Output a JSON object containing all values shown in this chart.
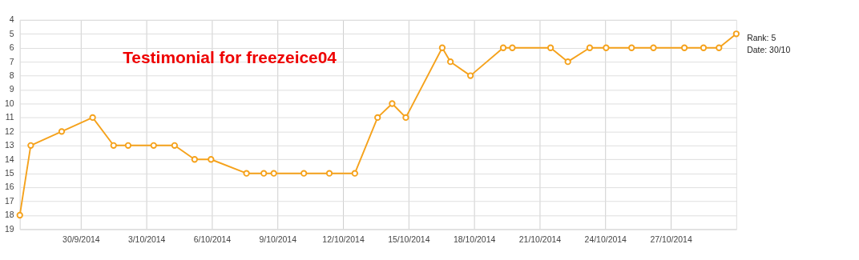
{
  "chart_data": {
    "type": "line",
    "x": [
      "2014-09-27T05:00",
      "2014-09-27T17:00",
      "2014-09-29T03:00",
      "2014-09-30T13:00",
      "2014-10-01T12:00",
      "2014-10-02T04:00",
      "2014-10-03T08:00",
      "2014-10-04T07:00",
      "2014-10-05T05:00",
      "2014-10-05T23:00",
      "2014-10-07T14:00",
      "2014-10-08T09:00",
      "2014-10-08T20:00",
      "2014-10-10T05:00",
      "2014-10-11T09:00",
      "2014-10-12T13:00",
      "2014-10-13T14:00",
      "2014-10-14T06:00",
      "2014-10-14T21:00",
      "2014-10-16T13:00",
      "2014-10-16T22:00",
      "2014-10-17T20:00",
      "2014-10-19T08:00",
      "2014-10-19T18:00",
      "2014-10-21T12:00",
      "2014-10-22T07:00",
      "2014-10-23T07:00",
      "2014-10-24T01:00",
      "2014-10-25T05:00",
      "2014-10-26T05:00",
      "2014-10-27T15:00",
      "2014-10-28T12:00",
      "2014-10-29T05:00",
      "2014-10-30T00:00"
    ],
    "series": [
      {
        "color": "#f5a21c",
        "values": [
          18,
          13,
          12,
          11,
          13,
          13,
          13,
          13,
          14,
          14,
          15,
          15,
          15,
          15,
          15,
          15,
          11,
          10,
          11,
          6,
          7,
          8,
          6,
          6,
          6,
          7,
          6,
          6,
          6,
          6,
          6,
          6,
          6,
          5
        ]
      }
    ],
    "xlim": [
      "2014-09-27T05:00",
      "2014-10-30T00:00"
    ],
    "xticks": [
      {
        "value": "2014-09-30",
        "label": "30/9/2014"
      },
      {
        "value": "2014-10-03",
        "label": "3/10/2014"
      },
      {
        "value": "2014-10-06",
        "label": "6/10/2014"
      },
      {
        "value": "2014-10-09",
        "label": "9/10/2014"
      },
      {
        "value": "2014-10-12",
        "label": "12/10/2014"
      },
      {
        "value": "2014-10-15",
        "label": "15/10/2014"
      },
      {
        "value": "2014-10-18",
        "label": "18/10/2014"
      },
      {
        "value": "2014-10-21",
        "label": "21/10/2014"
      },
      {
        "value": "2014-10-24",
        "label": "24/10/2014"
      },
      {
        "value": "2014-10-27",
        "label": "27/10/2014"
      }
    ],
    "ylim": [
      19,
      4
    ],
    "yticks": [
      4,
      5,
      6,
      7,
      8,
      9,
      10,
      11,
      12,
      13,
      14,
      15,
      16,
      17,
      18,
      19
    ],
    "grid": true,
    "marker": "circle",
    "line_style": "solid",
    "annotations": [
      "Testimonial for freezeice04",
      {
        "text": "Rank: 5\nDate: 30/10",
        "x": "2014-10-30T00:00",
        "y": 5
      }
    ]
  }
}
